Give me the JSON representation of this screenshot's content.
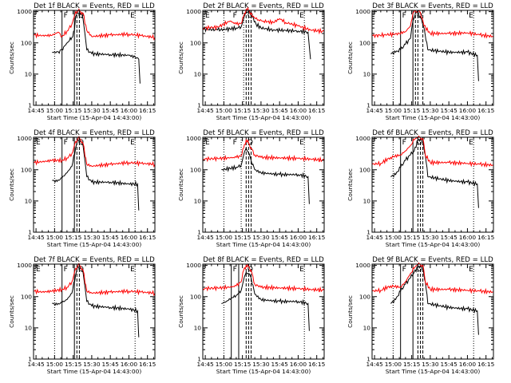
{
  "figure": {
    "x_tick_labels": [
      "14:45",
      "15:00",
      "15:15",
      "15:30",
      "15:45",
      "16:00",
      "16:15"
    ],
    "y_tick_labels": [
      "1",
      "10",
      "100",
      "1000"
    ],
    "xlabel": "Start Time (15-Apr-04 14:43:00)",
    "ylabel": "Counts/sec",
    "colors": {
      "events": "#000000",
      "lld": "#ff0000",
      "axes": "#000000"
    }
  },
  "chart_data": [
    {
      "type": "line",
      "title": "Det 1f BLACK = Events, RED = LLD",
      "xlabel": "Start Time (15-Apr-04 14:43:00)",
      "ylabel": "Counts/sec",
      "xlim": [
        "14:43",
        "16:21"
      ],
      "ylim": [
        1,
        1100
      ],
      "yscale": "log",
      "marker_labels": [
        "F",
        "Q",
        "E"
      ],
      "solid_lines": [
        "15:06",
        "15:16"
      ],
      "dashed_lines": [
        "15:18",
        "15:20"
      ],
      "dotted_lines": [
        "15:00",
        "16:05"
      ],
      "series": [
        {
          "color": "#000000",
          "x": [
            "14:58",
            "15:01",
            "15:03",
            "15:06",
            "15:08",
            "15:12",
            "15:14",
            "15:16",
            "15:17",
            "15:19",
            "15:21",
            "15:23",
            "15:26",
            "15:30",
            "15:45",
            "16:00",
            "16:05",
            "16:08",
            "16:09"
          ],
          "values": [
            50,
            48,
            52,
            60,
            80,
            120,
            150,
            250,
            700,
            900,
            880,
            600,
            60,
            45,
            42,
            40,
            35,
            30,
            5
          ]
        },
        {
          "color": "#ff0000",
          "x": [
            "14:43",
            "14:50",
            "14:58",
            "15:03",
            "15:06",
            "15:10",
            "15:14",
            "15:16",
            "15:17",
            "15:19",
            "15:21",
            "15:23",
            "15:26",
            "15:30",
            "15:45",
            "16:00",
            "16:10",
            "16:21"
          ],
          "values": [
            180,
            170,
            175,
            220,
            160,
            240,
            400,
            700,
            1000,
            1050,
            1000,
            900,
            250,
            160,
            180,
            190,
            170,
            150
          ]
        }
      ]
    },
    {
      "type": "line",
      "title": "Det 2f BLACK = Events, RED = LLD",
      "xlabel": "Start Time (15-Apr-04 14:43:00)",
      "ylabel": "Counts/sec",
      "xlim": [
        "14:43",
        "16:21"
      ],
      "ylim": [
        1,
        1100
      ],
      "yscale": "log",
      "marker_labels": [
        "E",
        "F",
        "Q",
        "E"
      ],
      "solid_lines": [],
      "dashed_lines": [
        "15:18",
        "15:20",
        "15:22"
      ],
      "dotted_lines": [
        "15:00",
        "15:16",
        "16:05"
      ],
      "series": [
        {
          "color": "#000000",
          "x": [
            "14:43",
            "14:55",
            "15:05",
            "15:10",
            "15:14",
            "15:16",
            "15:18",
            "15:20",
            "15:23",
            "15:26",
            "15:30",
            "15:40",
            "15:50",
            "16:00",
            "16:08",
            "16:10"
          ],
          "values": [
            280,
            260,
            280,
            300,
            330,
            600,
            1000,
            1000,
            700,
            400,
            300,
            260,
            250,
            240,
            220,
            30
          ]
        },
        {
          "color": "#ff0000",
          "x": [
            "14:43",
            "14:55",
            "15:05",
            "15:10",
            "15:14",
            "15:16",
            "15:18",
            "15:20",
            "15:23",
            "15:28",
            "15:32",
            "15:40",
            "15:45",
            "15:50",
            "16:00",
            "16:10",
            "16:21"
          ],
          "values": [
            300,
            320,
            500,
            400,
            420,
            700,
            1200,
            1100,
            700,
            550,
            500,
            450,
            600,
            450,
            350,
            260,
            230
          ]
        }
      ]
    },
    {
      "type": "line",
      "title": "Det 3f BLACK = Events, RED = LLD",
      "xlabel": "Start Time (15-Apr-04 14:43:00)",
      "ylabel": "Counts/sec",
      "xlim": [
        "14:43",
        "16:21"
      ],
      "ylim": [
        1,
        1100
      ],
      "yscale": "log",
      "marker_labels": [
        "F",
        "Q",
        "E"
      ],
      "solid_lines": [
        "15:06",
        "15:16"
      ],
      "dashed_lines": [
        "15:18",
        "15:20",
        "15:24"
      ],
      "dotted_lines": [
        "15:00",
        "16:05"
      ],
      "series": [
        {
          "color": "#000000",
          "x": [
            "14:58",
            "15:02",
            "15:06",
            "15:10",
            "15:14",
            "15:16",
            "15:18",
            "15:20",
            "15:22",
            "15:25",
            "15:28",
            "15:45",
            "16:00",
            "16:08",
            "16:09"
          ],
          "values": [
            45,
            50,
            60,
            90,
            140,
            500,
            900,
            900,
            700,
            300,
            60,
            50,
            50,
            40,
            6
          ]
        },
        {
          "color": "#ff0000",
          "x": [
            "14:43",
            "14:55",
            "15:05",
            "15:10",
            "15:14",
            "15:16",
            "15:18",
            "15:20",
            "15:22",
            "15:25",
            "15:30",
            "15:45",
            "16:00",
            "16:10",
            "16:21"
          ],
          "values": [
            170,
            180,
            200,
            230,
            350,
            900,
            1050,
            1000,
            950,
            350,
            200,
            200,
            210,
            180,
            160
          ]
        }
      ]
    },
    {
      "type": "line",
      "title": "Det 4f BLACK = Events, RED = LLD",
      "xlabel": "Start Time (15-Apr-04 14:43:00)",
      "ylabel": "Counts/sec",
      "xlim": [
        "14:43",
        "16:21"
      ],
      "ylim": [
        1,
        1100
      ],
      "yscale": "log",
      "marker_labels": [
        "E",
        "F",
        "Q",
        "E"
      ],
      "solid_lines": [
        "15:06",
        "15:16"
      ],
      "dashed_lines": [
        "15:18",
        "15:20"
      ],
      "dotted_lines": [
        "15:00",
        "16:05"
      ],
      "series": [
        {
          "color": "#000000",
          "x": [
            "14:58",
            "15:02",
            "15:06",
            "15:10",
            "15:14",
            "15:17",
            "15:19",
            "15:21",
            "15:23",
            "15:26",
            "15:30",
            "15:45",
            "16:00",
            "16:07",
            "16:08"
          ],
          "values": [
            45,
            42,
            55,
            80,
            130,
            500,
            900,
            850,
            600,
            60,
            40,
            40,
            35,
            35,
            5
          ]
        },
        {
          "color": "#ff0000",
          "x": [
            "14:43",
            "14:50",
            "14:58",
            "15:06",
            "15:10",
            "15:14",
            "15:17",
            "15:19",
            "15:21",
            "15:23",
            "15:26",
            "15:30",
            "15:45",
            "16:00",
            "16:10",
            "16:21"
          ],
          "values": [
            170,
            180,
            200,
            200,
            240,
            330,
            800,
            1000,
            950,
            700,
            150,
            130,
            150,
            170,
            160,
            150
          ]
        }
      ]
    },
    {
      "type": "line",
      "title": "Det 5f BLACK = Events, RED = LLD",
      "xlabel": "Start Time (15-Apr-04 14:43:00)",
      "ylabel": "Counts/sec",
      "xlim": [
        "14:43",
        "16:21"
      ],
      "ylim": [
        1,
        1100
      ],
      "yscale": "log",
      "marker_labels": [
        "E",
        "F",
        "Q",
        "E"
      ],
      "solid_lines": [],
      "dashed_lines": [
        "15:18",
        "15:20",
        "15:22"
      ],
      "dotted_lines": [
        "15:00",
        "15:14",
        "16:05"
      ],
      "series": [
        {
          "color": "#000000",
          "x": [
            "14:58",
            "15:05",
            "15:10",
            "15:14",
            "15:16",
            "15:18",
            "15:20",
            "15:22",
            "15:25",
            "15:30",
            "15:45",
            "16:00",
            "16:08",
            "16:09"
          ],
          "values": [
            100,
            110,
            120,
            140,
            300,
            500,
            350,
            200,
            100,
            80,
            70,
            70,
            60,
            8
          ]
        },
        {
          "color": "#ff0000",
          "x": [
            "14:43",
            "14:55",
            "15:05",
            "15:10",
            "15:14",
            "15:16",
            "15:18",
            "15:20",
            "15:22",
            "15:25",
            "15:30",
            "15:45",
            "16:00",
            "16:10",
            "16:21"
          ],
          "values": [
            220,
            230,
            240,
            250,
            280,
            500,
            900,
            700,
            500,
            300,
            250,
            240,
            230,
            220,
            200
          ]
        }
      ]
    },
    {
      "type": "line",
      "title": "Det 6f BLACK = Events, RED = LLD",
      "xlabel": "Start Time (15-Apr-04 14:43:00)",
      "ylabel": "Counts/sec",
      "xlim": [
        "14:43",
        "16:21"
      ],
      "ylim": [
        1,
        1100
      ],
      "yscale": "log",
      "marker_labels": [
        "F",
        "Q",
        "E"
      ],
      "solid_lines": [
        "15:06",
        "15:16"
      ],
      "dashed_lines": [
        "15:20",
        "15:22",
        "15:24"
      ],
      "dotted_lines": [
        "15:00",
        "16:05"
      ],
      "series": [
        {
          "color": "#000000",
          "x": [
            "14:58",
            "15:02",
            "15:06",
            "15:10",
            "15:14",
            "15:17",
            "15:20",
            "15:22",
            "15:24",
            "15:26",
            "15:28",
            "15:45",
            "16:00",
            "16:08",
            "16:09"
          ],
          "values": [
            60,
            70,
            120,
            200,
            300,
            400,
            900,
            1000,
            800,
            300,
            60,
            45,
            40,
            35,
            6
          ]
        },
        {
          "color": "#ff0000",
          "x": [
            "14:43",
            "14:50",
            "14:58",
            "15:06",
            "15:10",
            "15:14",
            "15:17",
            "15:20",
            "15:22",
            "15:24",
            "15:26",
            "15:30",
            "15:45",
            "16:00",
            "16:10",
            "16:21"
          ],
          "values": [
            150,
            160,
            250,
            300,
            400,
            600,
            900,
            1100,
            1050,
            1000,
            300,
            170,
            170,
            160,
            150,
            140
          ]
        }
      ]
    },
    {
      "type": "line",
      "title": "Det 7f BLACK = Events, RED = LLD",
      "xlabel": "Start Time (15-Apr-04 14:43:00)",
      "ylabel": "Counts/sec",
      "xlim": [
        "14:43",
        "16:21"
      ],
      "ylim": [
        1,
        1100
      ],
      "yscale": "log",
      "marker_labels": [
        "E",
        "F",
        "Q",
        "E"
      ],
      "solid_lines": [
        "15:06",
        "15:16"
      ],
      "dashed_lines": [
        "15:18",
        "15:20"
      ],
      "dotted_lines": [
        "15:00",
        "16:05"
      ],
      "series": [
        {
          "color": "#000000",
          "x": [
            "14:58",
            "15:02",
            "15:06",
            "15:10",
            "15:14",
            "15:17",
            "15:19",
            "15:21",
            "15:23",
            "15:26",
            "15:30",
            "15:45",
            "16:00",
            "16:07",
            "16:08"
          ],
          "values": [
            60,
            55,
            65,
            80,
            130,
            500,
            900,
            850,
            600,
            70,
            50,
            45,
            40,
            35,
            5
          ]
        },
        {
          "color": "#ff0000",
          "x": [
            "14:43",
            "14:50",
            "14:58",
            "15:06",
            "15:10",
            "15:14",
            "15:17",
            "15:19",
            "15:21",
            "15:23",
            "15:26",
            "15:30",
            "15:45",
            "16:00",
            "16:10",
            "16:21"
          ],
          "values": [
            150,
            140,
            150,
            170,
            200,
            300,
            800,
            1000,
            950,
            700,
            150,
            130,
            140,
            150,
            140,
            130
          ]
        }
      ]
    },
    {
      "type": "line",
      "title": "Det 8f BLACK = Events, RED = LLD",
      "xlabel": "Start Time (15-Apr-04 14:43:00)",
      "ylabel": "Counts/sec",
      "xlim": [
        "14:43",
        "16:21"
      ],
      "ylim": [
        1,
        1100
      ],
      "yscale": "log",
      "marker_labels": [
        "F",
        "Q",
        "E"
      ],
      "solid_lines": [
        "15:06",
        "15:12"
      ],
      "dashed_lines": [
        "15:18",
        "15:20",
        "15:22"
      ],
      "dotted_lines": [
        "15:00",
        "16:05"
      ],
      "series": [
        {
          "color": "#000000",
          "x": [
            "14:58",
            "15:02",
            "15:06",
            "15:10",
            "15:14",
            "15:16",
            "15:18",
            "15:20",
            "15:22",
            "15:25",
            "15:30",
            "15:45",
            "16:00",
            "16:08",
            "16:09"
          ],
          "values": [
            60,
            70,
            90,
            110,
            160,
            350,
            600,
            550,
            400,
            120,
            80,
            70,
            70,
            60,
            8
          ]
        },
        {
          "color": "#ff0000",
          "x": [
            "14:43",
            "14:55",
            "15:05",
            "15:10",
            "15:14",
            "15:16",
            "15:18",
            "15:20",
            "15:22",
            "15:25",
            "15:30",
            "15:45",
            "16:00",
            "16:10",
            "16:21"
          ],
          "values": [
            180,
            190,
            200,
            220,
            300,
            700,
            1000,
            900,
            700,
            250,
            200,
            190,
            180,
            170,
            160
          ]
        }
      ]
    },
    {
      "type": "line",
      "title": "Det 9f BLACK = Events, RED = LLD",
      "xlabel": "Start Time (15-Apr-04 14:43:00)",
      "ylabel": "Counts/sec",
      "xlim": [
        "14:43",
        "16:21"
      ],
      "ylim": [
        1,
        1100
      ],
      "yscale": "log",
      "marker_labels": [
        "F",
        "Q",
        "E"
      ],
      "solid_lines": [
        "15:06",
        "15:16"
      ],
      "dashed_lines": [
        "15:20",
        "15:22",
        "15:24"
      ],
      "dotted_lines": [
        "15:00",
        "16:05"
      ],
      "series": [
        {
          "color": "#000000",
          "x": [
            "14:58",
            "15:02",
            "15:06",
            "15:10",
            "15:14",
            "15:17",
            "15:20",
            "15:22",
            "15:24",
            "15:26",
            "15:28",
            "15:45",
            "16:00",
            "16:08",
            "16:09"
          ],
          "values": [
            60,
            80,
            150,
            250,
            400,
            600,
            900,
            1000,
            800,
            300,
            60,
            45,
            40,
            35,
            6
          ]
        },
        {
          "color": "#ff0000",
          "x": [
            "14:43",
            "14:50",
            "14:58",
            "15:06",
            "15:10",
            "15:14",
            "15:17",
            "15:20",
            "15:22",
            "15:24",
            "15:26",
            "15:30",
            "15:45",
            "16:00",
            "16:10",
            "16:21"
          ],
          "values": [
            150,
            160,
            220,
            200,
            300,
            550,
            800,
            1100,
            1050,
            1000,
            300,
            170,
            170,
            160,
            150,
            140
          ]
        }
      ]
    }
  ]
}
